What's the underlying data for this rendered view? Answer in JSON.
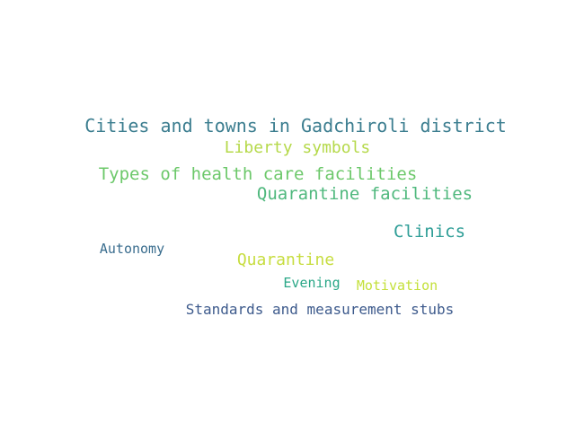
{
  "words": [
    {
      "text": "Cities and towns in Gadchiroli district",
      "color": "#3b7d8f"
    },
    {
      "text": "Liberty symbols",
      "color": "#b5d94a"
    },
    {
      "text": "Types of health care facilities",
      "color": "#6cc86a"
    },
    {
      "text": "Quarantine facilities",
      "color": "#4fb87d"
    },
    {
      "text": "Clinics",
      "color": "#2f9e97"
    },
    {
      "text": "Autonomy",
      "color": "#3a6d8e"
    },
    {
      "text": "Quarantine",
      "color": "#c7dd3f"
    },
    {
      "text": "Evening",
      "color": "#2aa787"
    },
    {
      "text": "Motivation",
      "color": "#c4e03a"
    },
    {
      "text": "Standards and measurement stubs",
      "color": "#3d5a8c"
    }
  ]
}
